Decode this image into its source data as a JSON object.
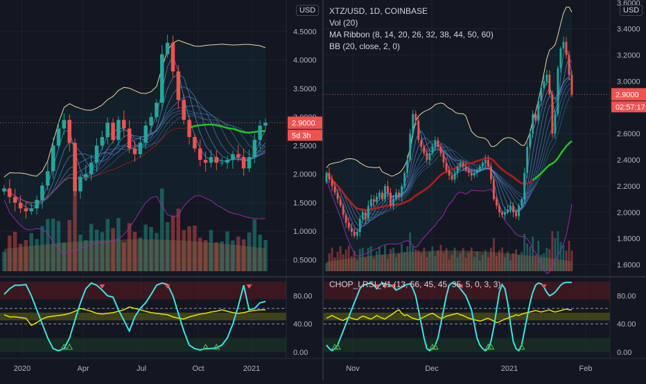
{
  "left": {
    "currency_button": "USD",
    "price_label": "2.9000",
    "countdown_label": "5d 3h",
    "chart_data": {
      "type": "candlestick",
      "interval": "weekly",
      "x_ticks": [
        "2020",
        "Apr",
        "Jul",
        "Oct",
        "2021"
      ],
      "y_ticks": [
        "4.5000",
        "4.0000",
        "3.5000",
        "3.0000",
        "2.5000",
        "2.0000",
        "1.5000",
        "1.0000",
        "0.5000"
      ],
      "ylim": [
        0.3,
        5.05
      ],
      "last_price": 2.9,
      "close": [
        1.75,
        1.6,
        1.5,
        1.4,
        1.35,
        1.4,
        1.55,
        1.8,
        2.05,
        2.5,
        2.8,
        2.95,
        2.55,
        1.7,
        1.95,
        2.0,
        2.2,
        2.5,
        2.65,
        2.9,
        2.6,
        2.95,
        2.8,
        2.45,
        2.35,
        2.55,
        2.85,
        3.0,
        3.25,
        4.1,
        4.3,
        3.8,
        3.3,
        2.95,
        2.65,
        2.45,
        2.25,
        2.2,
        2.3,
        2.2,
        2.2,
        2.25,
        2.35,
        2.3,
        2.1,
        2.3,
        2.6,
        2.85,
        2.9
      ],
      "indicator": {
        "ticks": [
          "80.00",
          "40.00",
          "0.00"
        ],
        "ylim": [
          -5,
          105
        ],
        "cyan": [
          82,
          90,
          95,
          95,
          96,
          80,
          60,
          40,
          20,
          5,
          2,
          5,
          20,
          45,
          70,
          90,
          98,
          95,
          88,
          80,
          78,
          60,
          45,
          30,
          50,
          62,
          70,
          82,
          95,
          98,
          96,
          80,
          55,
          30,
          10,
          5,
          3,
          5,
          5,
          6,
          10,
          20,
          40,
          65,
          95,
          60,
          62,
          70,
          72
        ],
        "yellow": [
          53,
          50,
          50,
          49,
          48,
          38,
          42,
          47,
          50,
          51,
          52,
          53,
          55,
          58,
          62,
          60,
          58,
          55,
          54,
          55,
          56,
          58,
          60,
          64,
          62,
          60,
          58,
          56,
          55,
          54,
          53,
          50,
          48,
          47,
          50,
          52,
          54,
          55,
          57,
          58,
          60,
          58,
          56,
          55,
          56,
          58,
          59,
          60,
          60
        ]
      }
    }
  },
  "right": {
    "currency_button": "USD",
    "symbol_title": "XTZ/USD, 1D, COINBASE",
    "indicators": [
      "Vol (20)",
      "MA Ribbon (8, 14, 20, 26, 32, 38, 44, 50, 60)",
      "BB (20, close, 2, 0)"
    ],
    "price_label": "2.9000",
    "countdown_label": "02:57:17",
    "osc_legend": "CHOP_LRSI_V1 (13, 56, 45, 45, 35, 5, 0, 3, 3)",
    "chart_data": {
      "type": "candlestick",
      "interval": "daily",
      "x_ticks": [
        "Nov",
        "Dec",
        "2021",
        "Feb"
      ],
      "y_ticks": [
        "3.4000",
        "3.2000",
        "3.0000",
        "2.8000",
        "2.6000",
        "2.4000",
        "2.2000",
        "2.0000",
        "1.8000",
        "1.6000"
      ],
      "y_top_partial": "3.6000",
      "ylim": [
        1.55,
        3.62
      ],
      "last_price": 2.9,
      "close": [
        2.3,
        2.25,
        2.2,
        2.15,
        2.1,
        2.05,
        1.98,
        1.92,
        1.88,
        1.85,
        1.82,
        1.85,
        1.95,
        2.0,
        1.95,
        2.05,
        2.1,
        2.08,
        2.12,
        2.15,
        2.1,
        2.2,
        2.15,
        2.05,
        2.1,
        2.15,
        2.12,
        2.2,
        2.3,
        2.4,
        2.6,
        2.75,
        2.7,
        2.55,
        2.5,
        2.45,
        2.4,
        2.45,
        2.5,
        2.55,
        2.5,
        2.45,
        2.38,
        2.32,
        2.28,
        2.25,
        2.3,
        2.35,
        2.38,
        2.35,
        2.32,
        2.3,
        2.28,
        2.3,
        2.32,
        2.35,
        2.38,
        2.4,
        2.35,
        2.25,
        2.1,
        2.05,
        2.0,
        1.98,
        2.0,
        2.02,
        2.05,
        2.0,
        1.97,
        2.05,
        2.1,
        2.3,
        2.5,
        2.6,
        2.75,
        2.7,
        2.85,
        2.95,
        3.0,
        3.05,
        2.9,
        2.6,
        2.75,
        3.1,
        3.25,
        3.3,
        3.2,
        3.05,
        2.9
      ],
      "indicator": {
        "ticks": [
          "80.00",
          "40.00",
          "0.00"
        ],
        "ylim": [
          -5,
          105
        ],
        "cyan": [
          10,
          5,
          2,
          5,
          10,
          20,
          30,
          40,
          50,
          60,
          70,
          80,
          90,
          95,
          96,
          97,
          98,
          95,
          90,
          95,
          98,
          97,
          96,
          95,
          92,
          88,
          90,
          92,
          95,
          96,
          97,
          90,
          80,
          60,
          40,
          20,
          5,
          2,
          5,
          10,
          20,
          40,
          60,
          80,
          95,
          98,
          97,
          95,
          90,
          85,
          80,
          70,
          60,
          40,
          20,
          10,
          5,
          2,
          5,
          15,
          35,
          60,
          85,
          96,
          90,
          70,
          40,
          15,
          5,
          2,
          10,
          30,
          50,
          70,
          85,
          95,
          98,
          97,
          92,
          85,
          80,
          82,
          85,
          90,
          95,
          98,
          99,
          99,
          99
        ],
        "yellow": [
          48,
          50,
          52,
          50,
          48,
          46,
          45,
          47,
          50,
          48,
          47,
          46,
          49,
          51,
          50,
          48,
          47,
          49,
          52,
          50,
          48,
          47,
          50,
          52,
          55,
          58,
          60,
          55,
          52,
          53,
          50,
          48,
          47,
          46,
          48,
          50,
          52,
          54,
          55,
          53,
          50,
          48,
          49,
          51,
          52,
          53,
          54,
          55,
          53,
          52,
          50,
          48,
          47,
          46,
          45,
          44,
          45,
          47,
          48,
          46,
          44,
          42,
          43,
          45,
          47,
          48,
          50,
          51,
          53,
          52,
          54,
          55,
          56,
          57,
          58,
          59,
          58,
          57,
          58,
          59,
          60,
          58,
          57,
          58,
          59,
          60,
          61,
          60,
          60
        ]
      }
    }
  },
  "colors": {
    "up": "#26a69a",
    "down": "#ef5350",
    "bb": "#e8d9a8",
    "ribbon": "#5b8dd8",
    "ma_red": "#b71c1c",
    "ma_green": "#1ec723",
    "lower_band": "#9c27b0",
    "cyan": "#3ee6e6",
    "yellow": "#e6e600",
    "price_tag": "#ef5350"
  }
}
